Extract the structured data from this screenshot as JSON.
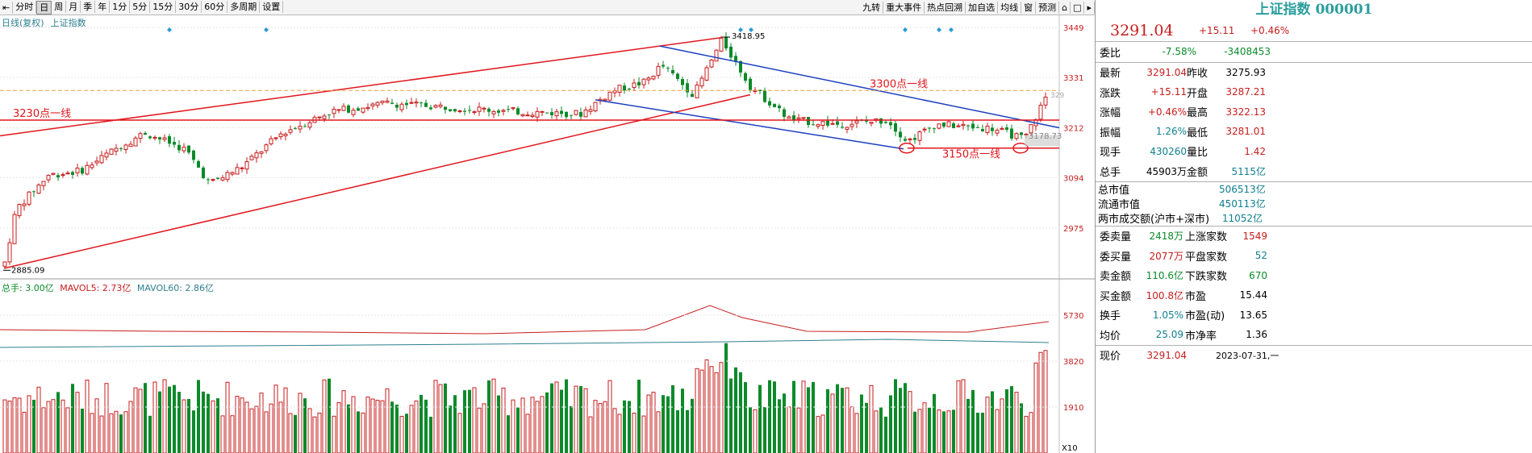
{
  "toolbar": {
    "left_items": [
      "分时",
      "日",
      "周",
      "月",
      "季",
      "年",
      "1分",
      "5分",
      "15分",
      "30分",
      "60分",
      "多周期",
      "设置"
    ],
    "active": "日",
    "right_items": [
      "九转",
      "重大事件",
      "热点回溯",
      "加自选",
      "均线",
      "窗",
      "预测"
    ]
  },
  "subtitle": {
    "mode": "日线(复权)",
    "index": "上证指数"
  },
  "price_axis": {
    "ticks": [
      "3449",
      "3331",
      "3212",
      "3094",
      "2975"
    ]
  },
  "annotations": {
    "high_label": "3418.95",
    "low_label": "2885.09",
    "cur_low_label": "3178.73",
    "cut_label": "329",
    "line_3300": "3300点一线",
    "line_3230": "3230点一线",
    "line_3150": "3150点一线"
  },
  "volume": {
    "legend_total": "总手: 3.00亿",
    "legend_ma5": "MAVOL5: 2.73亿",
    "legend_ma60": "MAVOL60: 2.86亿",
    "ticks": [
      "5730",
      "3820",
      "1910"
    ],
    "unit": "X10"
  },
  "colors": {
    "up": "#c71d1d",
    "down": "#0b8a2a",
    "trend_red": "#e0161c",
    "trend_blue": "#1c3fbf",
    "teal": "#2c7f8f"
  },
  "panel": {
    "title": "上证指数 000001",
    "price": "3291.04",
    "change": "+15.11",
    "change_pct": "+0.46%",
    "weibi_label": "委比",
    "weibi": "-7.58%",
    "weicha": "-3408453",
    "rows1": [
      {
        "l1": "最新",
        "v1": "3291.04",
        "c1": "red",
        "l2": "昨收",
        "v2": "3275.93",
        "c2": "blk"
      },
      {
        "l1": "涨跌",
        "v1": "+15.11",
        "c1": "red",
        "l2": "开盘",
        "v2": "3287.21",
        "c2": "red"
      },
      {
        "l1": "涨幅",
        "v1": "+0.46%",
        "c1": "red",
        "l2": "最高",
        "v2": "3322.13",
        "c2": "red"
      },
      {
        "l1": "振幅",
        "v1": "1.26%",
        "c1": "cyan",
        "l2": "最低",
        "v2": "3281.01",
        "c2": "red"
      },
      {
        "l1": "现手",
        "v1": "430260",
        "c1": "cyan",
        "l2": "量比",
        "v2": "1.42",
        "c2": "red"
      },
      {
        "l1": "总手",
        "v1": "45903万",
        "c1": "blk",
        "l2": "金额",
        "v2": "5115亿",
        "c2": "cyan"
      }
    ],
    "rows2": [
      {
        "l": "总市值",
        "v": "506513亿"
      },
      {
        "l": "流通市值",
        "v": "450113亿"
      },
      {
        "l": "两市成交额(沪市+深市)",
        "v": "11052亿"
      }
    ],
    "rows3": [
      {
        "l1": "委卖量",
        "v1": "2418万",
        "c1": "green",
        "l2": "上涨家数",
        "v2": "1549",
        "c2": "red"
      },
      {
        "l1": "委买量",
        "v1": "2077万",
        "c1": "red",
        "l2": "平盘家数",
        "v2": "52",
        "c2": "cyan"
      },
      {
        "l1": "卖金额",
        "v1": "110.6亿",
        "c1": "green",
        "l2": "下跌家数",
        "v2": "670",
        "c2": "green"
      },
      {
        "l1": "买金额",
        "v1": "100.8亿",
        "c1": "red",
        "l2": "市盈",
        "v2": "15.44",
        "c2": "blk"
      },
      {
        "l1": "换手",
        "v1": "1.05%",
        "c1": "cyan",
        "l2": "市盈(动)",
        "v2": "13.65",
        "c2": "blk"
      },
      {
        "l1": "均价",
        "v1": "25.09",
        "c1": "cyan",
        "l2": "市净率",
        "v2": "1.36",
        "c2": "blk"
      }
    ],
    "footer_label": "现价",
    "footer_price": "3291.04",
    "footer_date": "2023-07-31,一"
  }
}
